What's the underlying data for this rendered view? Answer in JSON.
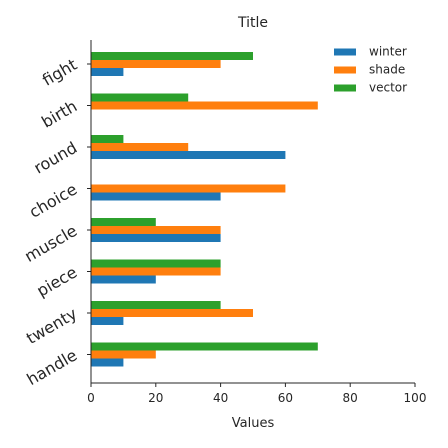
{
  "chart_data": {
    "type": "bar",
    "orientation": "horizontal",
    "title": "Title",
    "xlabel": "Values",
    "ylabel": "",
    "xlim": [
      0,
      100
    ],
    "x_ticks": [
      "0",
      "20",
      "40",
      "60",
      "80",
      "100"
    ],
    "categories": [
      "fight",
      "birth",
      "round",
      "choice",
      "muscle",
      "piece",
      "twenty",
      "handle"
    ],
    "series": [
      {
        "name": "winter",
        "color": "#1f77b4",
        "values": [
          10,
          0,
          60,
          40,
          40,
          20,
          10,
          10
        ]
      },
      {
        "name": "shade",
        "color": "#ff7f0e",
        "values": [
          40,
          70,
          30,
          60,
          40,
          40,
          50,
          20
        ]
      },
      {
        "name": "vector",
        "color": "#2ca02c",
        "values": [
          50,
          30,
          10,
          0,
          20,
          40,
          40,
          70
        ]
      }
    ],
    "grid": false,
    "legend_position": "top-right"
  }
}
